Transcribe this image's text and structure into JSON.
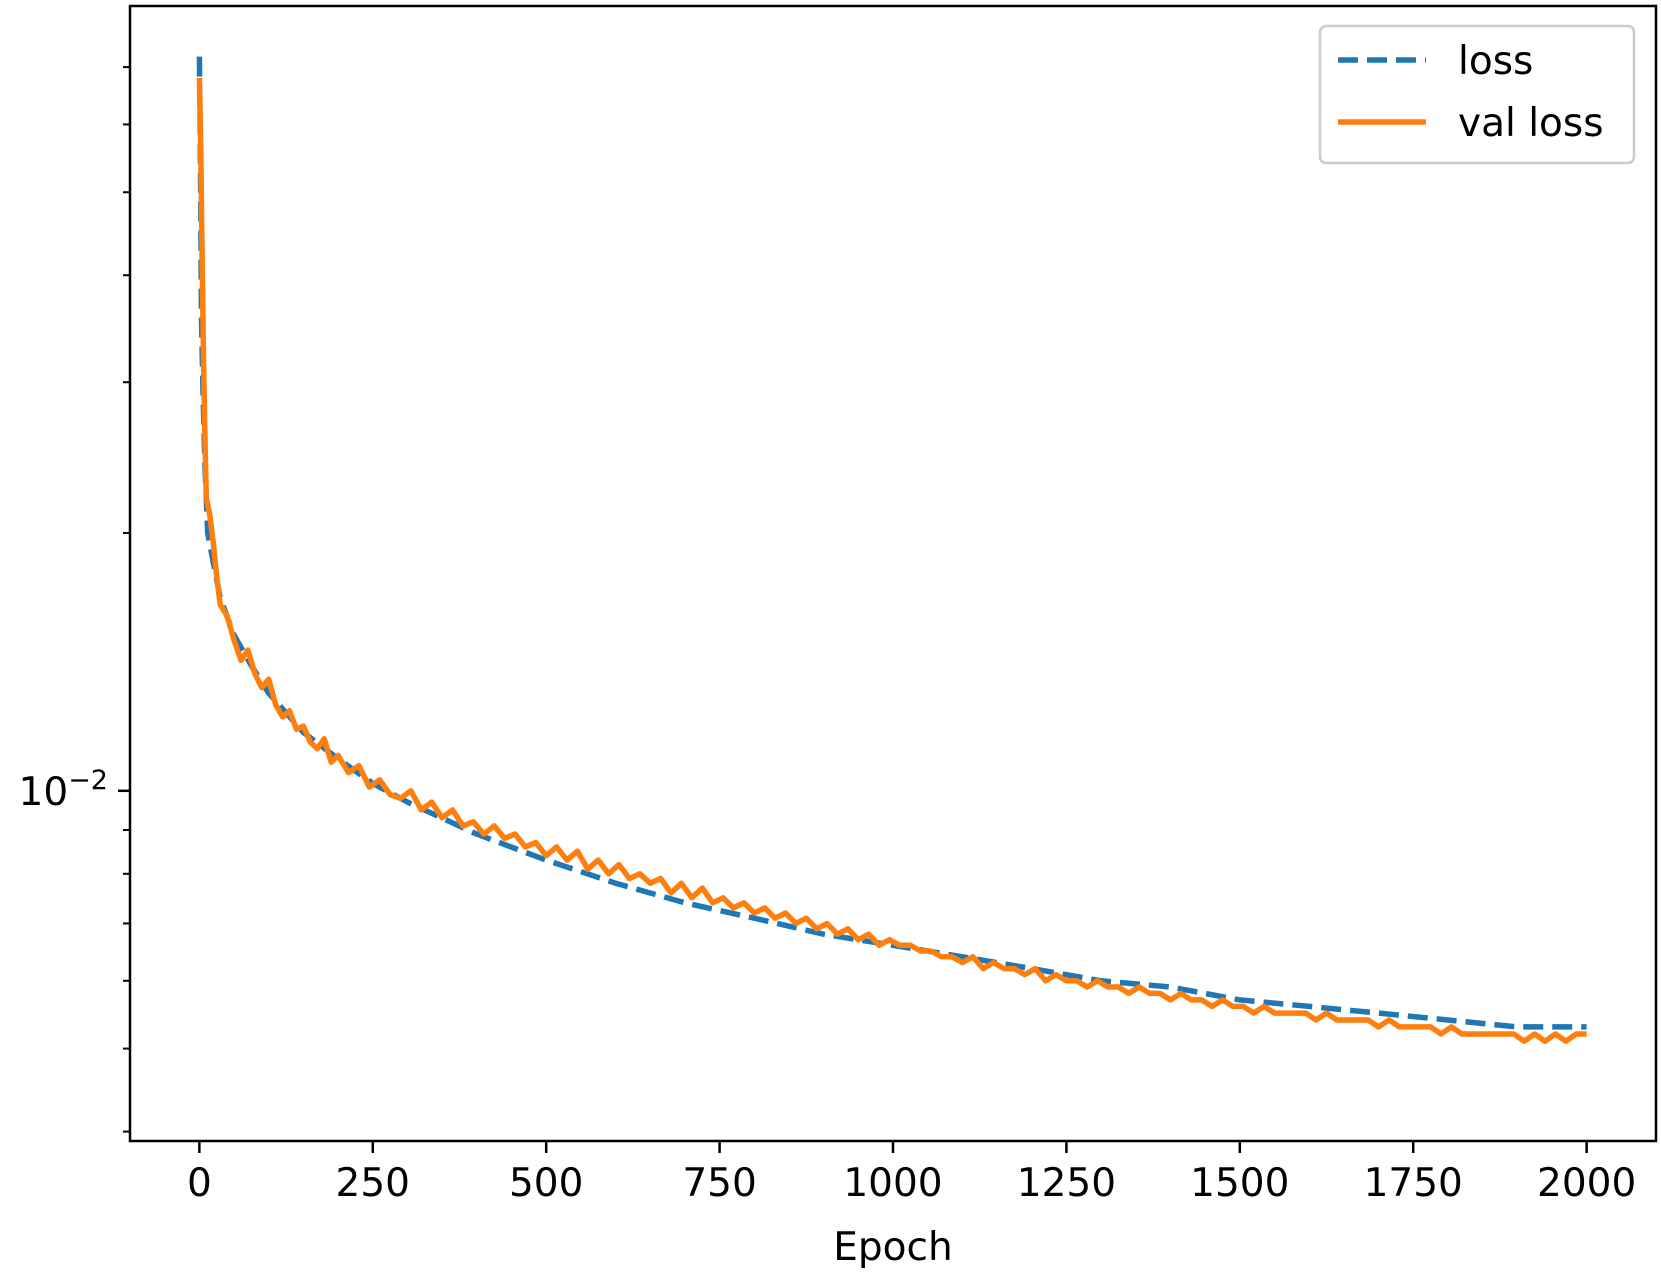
{
  "chart_data": {
    "type": "line",
    "xlabel": "Epoch",
    "ylabel": "",
    "xlim": [
      -100,
      2100
    ],
    "ylim": [
      0.0039,
      0.0825
    ],
    "yscale": "log",
    "x_ticks": [
      0,
      250,
      500,
      750,
      1000,
      1250,
      1500,
      1750,
      2000
    ],
    "x_tick_labels": [
      "0",
      "250",
      "500",
      "750",
      "1000",
      "1250",
      "1500",
      "1750",
      "2000"
    ],
    "y_major_ticks": [
      {
        "value": 0.01,
        "base": "10",
        "exp": "−2"
      }
    ],
    "y_minor_ticks": [
      0.004,
      0.005,
      0.006,
      0.007,
      0.008,
      0.009,
      0.02,
      0.03,
      0.04,
      0.05,
      0.06,
      0.07
    ],
    "legend_position": "top-right",
    "grid": false,
    "series": [
      {
        "name": "loss",
        "style": "dashed",
        "color": "#1f77b4",
        "x": [
          0,
          1,
          2,
          3,
          5,
          8,
          12,
          20,
          30,
          50,
          75,
          100,
          150,
          200,
          250,
          300,
          400,
          500,
          600,
          700,
          800,
          900,
          1000,
          1100,
          1200,
          1300,
          1400,
          1500,
          1600,
          1700,
          1800,
          1900,
          2000
        ],
        "y": [
          0.072,
          0.06,
          0.048,
          0.036,
          0.03,
          0.024,
          0.02,
          0.0185,
          0.0168,
          0.0152,
          0.014,
          0.013,
          0.0117,
          0.0109,
          0.0102,
          0.0097,
          0.0089,
          0.0083,
          0.0078,
          0.0074,
          0.0071,
          0.0068,
          0.0066,
          0.0064,
          0.0062,
          0.006,
          0.0059,
          0.0057,
          0.0056,
          0.0055,
          0.0054,
          0.0053,
          0.0053
        ]
      },
      {
        "name": "val loss",
        "style": "solid",
        "color": "#ff7f0e",
        "x": [
          0,
          2,
          4,
          6,
          8,
          10,
          15,
          20,
          25,
          30,
          40,
          50,
          60,
          70,
          80,
          90,
          100,
          110,
          120,
          130,
          140,
          150,
          160,
          170,
          180,
          190,
          200,
          215,
          230,
          245,
          260,
          275,
          290,
          305,
          320,
          335,
          350,
          365,
          380,
          395,
          410,
          425,
          440,
          455,
          470,
          485,
          500,
          515,
          530,
          545,
          560,
          575,
          590,
          605,
          620,
          635,
          650,
          665,
          680,
          695,
          710,
          725,
          740,
          755,
          770,
          785,
          800,
          815,
          830,
          845,
          860,
          875,
          890,
          905,
          920,
          935,
          950,
          965,
          980,
          995,
          1010,
          1025,
          1040,
          1055,
          1070,
          1085,
          1100,
          1115,
          1130,
          1145,
          1160,
          1175,
          1190,
          1205,
          1220,
          1235,
          1250,
          1265,
          1280,
          1295,
          1310,
          1325,
          1340,
          1355,
          1370,
          1385,
          1400,
          1415,
          1430,
          1445,
          1460,
          1475,
          1490,
          1505,
          1520,
          1535,
          1550,
          1565,
          1580,
          1595,
          1610,
          1625,
          1640,
          1655,
          1670,
          1685,
          1700,
          1715,
          1730,
          1745,
          1760,
          1775,
          1790,
          1805,
          1820,
          1835,
          1850,
          1865,
          1880,
          1895,
          1910,
          1925,
          1940,
          1955,
          1970,
          1985,
          2000
        ],
        "y": [
          0.068,
          0.056,
          0.042,
          0.032,
          0.026,
          0.022,
          0.021,
          0.0195,
          0.0178,
          0.0165,
          0.016,
          0.015,
          0.0142,
          0.0146,
          0.0137,
          0.0132,
          0.0135,
          0.0126,
          0.0122,
          0.0124,
          0.0118,
          0.0119,
          0.0114,
          0.0112,
          0.0115,
          0.0108,
          0.011,
          0.0105,
          0.0107,
          0.0101,
          0.0103,
          0.0099,
          0.0098,
          0.01,
          0.0095,
          0.0097,
          0.0093,
          0.0095,
          0.0091,
          0.0092,
          0.0089,
          0.0091,
          0.0088,
          0.0089,
          0.0086,
          0.0087,
          0.0084,
          0.0086,
          0.0083,
          0.0085,
          0.0081,
          0.0083,
          0.008,
          0.0082,
          0.0079,
          0.008,
          0.0078,
          0.0079,
          0.0076,
          0.0078,
          0.0075,
          0.0077,
          0.0074,
          0.0075,
          0.0073,
          0.0074,
          0.0072,
          0.0073,
          0.0071,
          0.0072,
          0.007,
          0.0071,
          0.0069,
          0.007,
          0.0068,
          0.0069,
          0.0067,
          0.0068,
          0.0066,
          0.0067,
          0.0066,
          0.0066,
          0.0065,
          0.0065,
          0.0064,
          0.0064,
          0.0063,
          0.0064,
          0.0062,
          0.0063,
          0.0062,
          0.0062,
          0.0061,
          0.0062,
          0.006,
          0.0061,
          0.006,
          0.006,
          0.0059,
          0.006,
          0.0059,
          0.0059,
          0.0058,
          0.0059,
          0.0058,
          0.0058,
          0.0057,
          0.0058,
          0.0057,
          0.0057,
          0.0056,
          0.0057,
          0.0056,
          0.0056,
          0.0055,
          0.0056,
          0.0055,
          0.0055,
          0.0055,
          0.0055,
          0.0054,
          0.0055,
          0.0054,
          0.0054,
          0.0054,
          0.0054,
          0.0053,
          0.0054,
          0.0053,
          0.0053,
          0.0053,
          0.0053,
          0.0052,
          0.0053,
          0.0052,
          0.0052,
          0.0052,
          0.0052,
          0.0052,
          0.0052,
          0.0051,
          0.0052,
          0.0051,
          0.0052,
          0.0051,
          0.0052,
          0.0052
        ]
      }
    ]
  }
}
